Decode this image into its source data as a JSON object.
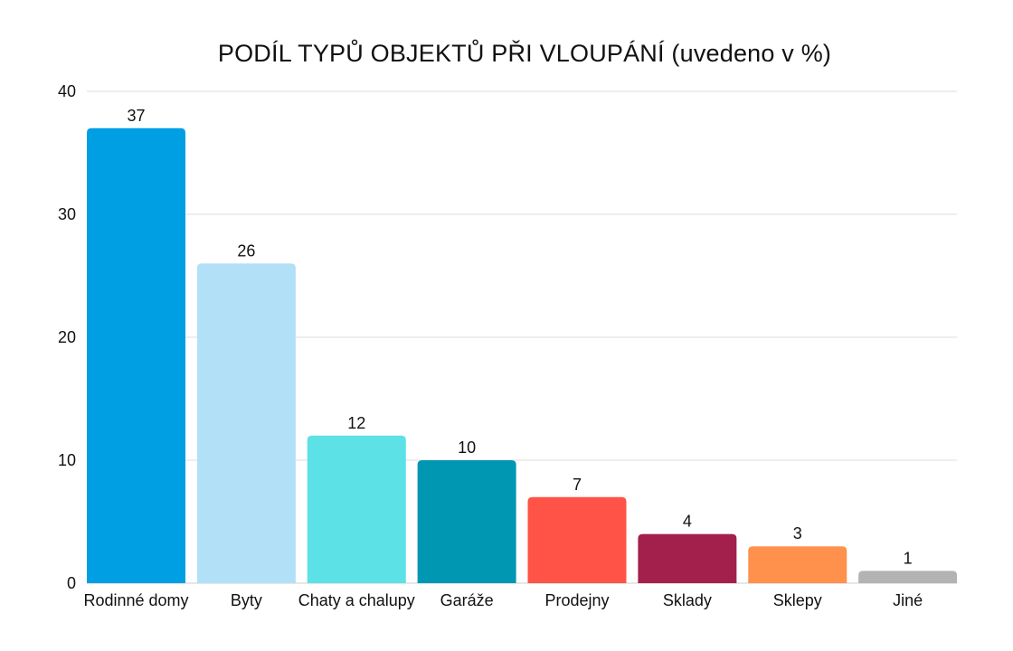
{
  "chart_data": {
    "type": "bar",
    "title": "PODÍL TYPŮ OBJEKTŮ PŘI VLOUPÁNÍ (uvedeno v %)",
    "categories": [
      "Rodinné domy",
      "Byty",
      "Chaty a chalupy",
      "Garáže",
      "Prodejny",
      "Sklady",
      "Sklepy",
      "Jiné"
    ],
    "values": [
      37,
      26,
      12,
      10,
      7,
      4,
      3,
      1
    ],
    "colors": [
      "#009fe3",
      "#b2e0f7",
      "#5ce1e6",
      "#0097b2",
      "#ff5348",
      "#a3204c",
      "#ff914d",
      "#b3b3b3"
    ],
    "ylim": [
      0,
      40
    ],
    "yticks": [
      0,
      10,
      20,
      30,
      40
    ],
    "xlabel": "",
    "ylabel": "",
    "grid": true,
    "data_labels": true
  }
}
